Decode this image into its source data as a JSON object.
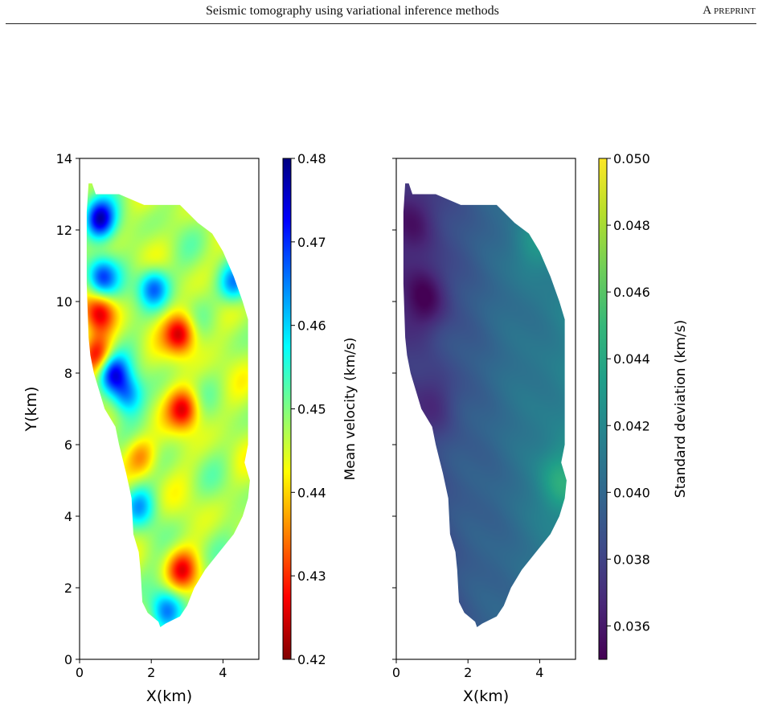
{
  "header": {
    "title": "Seismic tomography using variational inference methods",
    "tag": "A preprint"
  },
  "colors": {
    "jet": [
      "#800000",
      "#ff0000",
      "#ff8000",
      "#ffff00",
      "#80ff80",
      "#00ffff",
      "#0080ff",
      "#0000ff",
      "#000080"
    ],
    "viridis": [
      "#440154",
      "#482878",
      "#3e4a89",
      "#31688e",
      "#26828e",
      "#1f9e89",
      "#35b779",
      "#6ece58",
      "#b5de2b",
      "#fde725"
    ]
  },
  "chart_data": [
    {
      "type": "heatmap",
      "panel": "left",
      "quantity": "mean velocity",
      "xlabel": "X(km)",
      "ylabel": "Y(km)",
      "xlim": [
        0,
        5
      ],
      "ylim": [
        0,
        14
      ],
      "xticks": [
        "0",
        "2",
        "4"
      ],
      "yticks": [
        "0",
        "2",
        "4",
        "6",
        "8",
        "10",
        "12",
        "14"
      ],
      "colorbar": {
        "label": "Mean velocity (km/s)",
        "cmap": "jet",
        "range": [
          0.42,
          0.48
        ],
        "ticks": [
          "0.42",
          "0.43",
          "0.44",
          "0.45",
          "0.46",
          "0.47",
          "0.48"
        ]
      },
      "region_outline": [
        [
          0.25,
          13.3
        ],
        [
          0.35,
          13.3
        ],
        [
          0.45,
          13.0
        ],
        [
          1.1,
          13.0
        ],
        [
          1.8,
          12.7
        ],
        [
          2.8,
          12.7
        ],
        [
          3.3,
          12.2
        ],
        [
          3.7,
          11.9
        ],
        [
          4.0,
          11.4
        ],
        [
          4.3,
          10.7
        ],
        [
          4.55,
          10.0
        ],
        [
          4.7,
          9.5
        ],
        [
          4.7,
          6.0
        ],
        [
          4.6,
          5.5
        ],
        [
          4.75,
          5.0
        ],
        [
          4.7,
          4.5
        ],
        [
          4.55,
          4.0
        ],
        [
          4.3,
          3.5
        ],
        [
          3.9,
          3.0
        ],
        [
          3.5,
          2.5
        ],
        [
          3.2,
          2.0
        ],
        [
          3.0,
          1.5
        ],
        [
          2.8,
          1.2
        ],
        [
          2.4,
          1.0
        ],
        [
          2.25,
          0.9
        ],
        [
          2.2,
          1.05
        ],
        [
          1.9,
          1.3
        ],
        [
          1.75,
          1.6
        ],
        [
          1.7,
          2.5
        ],
        [
          1.65,
          3.0
        ],
        [
          1.5,
          3.5
        ],
        [
          1.45,
          4.5
        ],
        [
          1.3,
          5.2
        ],
        [
          1.2,
          5.6
        ],
        [
          1.1,
          6.0
        ],
        [
          1.0,
          6.5
        ],
        [
          0.7,
          7.0
        ],
        [
          0.55,
          7.5
        ],
        [
          0.4,
          8.0
        ],
        [
          0.3,
          8.5
        ],
        [
          0.25,
          9.0
        ],
        [
          0.2,
          10.5
        ],
        [
          0.2,
          12.5
        ]
      ],
      "features": [
        {
          "kind": "high",
          "x": 0.55,
          "y": 12.3,
          "value": 0.475
        },
        {
          "kind": "high",
          "x": 0.6,
          "y": 10.7,
          "value": 0.468
        },
        {
          "kind": "high",
          "x": 0.9,
          "y": 8.0,
          "value": 0.472
        },
        {
          "kind": "high",
          "x": 1.3,
          "y": 7.4,
          "value": 0.465
        },
        {
          "kind": "high",
          "x": 2.05,
          "y": 10.4,
          "value": 0.467
        },
        {
          "kind": "high",
          "x": 4.3,
          "y": 10.5,
          "value": 0.466
        },
        {
          "kind": "high",
          "x": 1.65,
          "y": 4.3,
          "value": 0.46
        },
        {
          "kind": "high",
          "x": 2.4,
          "y": 1.4,
          "value": 0.462
        },
        {
          "kind": "low",
          "x": 2.8,
          "y": 9.1,
          "value": 0.425
        },
        {
          "kind": "low",
          "x": 2.9,
          "y": 7.0,
          "value": 0.427
        },
        {
          "kind": "low",
          "x": 0.55,
          "y": 9.7,
          "value": 0.427
        },
        {
          "kind": "low",
          "x": 0.5,
          "y": 8.5,
          "value": 0.428
        },
        {
          "kind": "low",
          "x": 2.85,
          "y": 2.5,
          "value": 0.43
        },
        {
          "kind": "low",
          "x": 1.7,
          "y": 5.7,
          "value": 0.435
        }
      ]
    },
    {
      "type": "heatmap",
      "panel": "right",
      "quantity": "standard deviation",
      "xlabel": "X(km)",
      "ylabel": "",
      "xlim": [
        0,
        5
      ],
      "ylim": [
        0,
        14
      ],
      "xticks": [
        "0",
        "2",
        "4"
      ],
      "yticks": [],
      "colorbar": {
        "label": "Standard deviation (km/s)",
        "cmap": "viridis",
        "range": [
          0.035,
          0.05
        ],
        "ticks": [
          "0.036",
          "0.038",
          "0.040",
          "0.042",
          "0.044",
          "0.046",
          "0.048",
          "0.050"
        ]
      },
      "region_outline": "same as left panel",
      "features": [
        {
          "kind": "low",
          "x": 0.8,
          "y": 10.1,
          "value": 0.036
        },
        {
          "kind": "low",
          "x": 0.5,
          "y": 12.2,
          "value": 0.0372
        },
        {
          "kind": "low",
          "x": 1.1,
          "y": 7.2,
          "value": 0.0375
        },
        {
          "kind": "high",
          "x": 4.6,
          "y": 5.0,
          "value": 0.0425
        },
        {
          "kind": "high",
          "x": 3.8,
          "y": 11.6,
          "value": 0.0418
        }
      ]
    }
  ]
}
